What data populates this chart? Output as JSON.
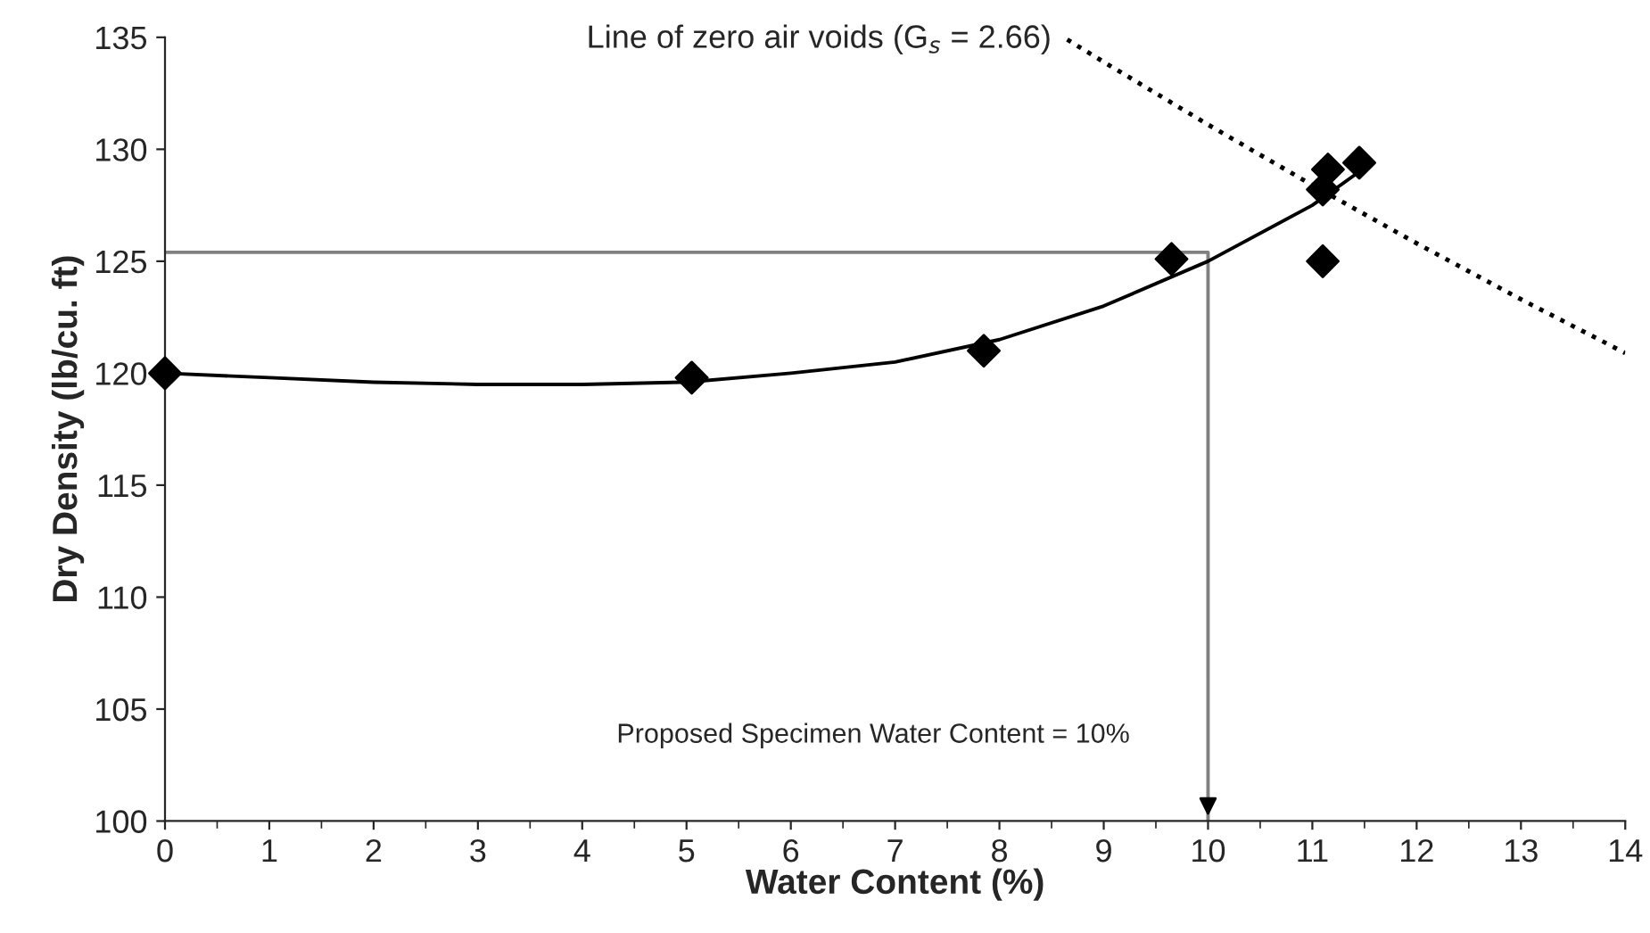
{
  "chart_data": {
    "type": "scatter",
    "xlabel": "Water Content (%)",
    "ylabel": "Dry Density (lb/cu. ft)",
    "xlim": [
      0,
      14
    ],
    "xticks": [
      0,
      1,
      2,
      3,
      4,
      5,
      6,
      7,
      8,
      9,
      10,
      11,
      12,
      13,
      14
    ],
    "ylim": [
      100,
      135
    ],
    "yticks": [
      100,
      105,
      110,
      115,
      120,
      125,
      130,
      135
    ],
    "grid": false,
    "legend": false,
    "series": [
      {
        "type": "line",
        "color": "#808080",
        "marker": "none",
        "line_style": "solid",
        "x": [
          0,
          10,
          10
        ],
        "values": [
          125.4,
          125.4,
          100
        ]
      },
      {
        "type": "line",
        "color": "#000000",
        "marker": "none",
        "line_style": "solid",
        "x": [
          0,
          1,
          2,
          3,
          4,
          5,
          6,
          7,
          8,
          9,
          10,
          11,
          11.45
        ],
        "values": [
          120,
          119.8,
          119.6,
          119.5,
          119.5,
          119.6,
          120,
          120.5,
          121.5,
          123,
          125,
          127.5,
          129
        ]
      },
      {
        "type": "line",
        "name": "Line of zero air voids (G$_{s}$ = 2.66)",
        "color": "#000000",
        "marker": "none",
        "line_style": "dotted",
        "x": [
          8.65,
          9,
          10,
          11,
          12,
          13,
          14
        ],
        "values": [
          134.9,
          133.9,
          131.1,
          128.4,
          125.8,
          123.3,
          120.9
        ]
      },
      {
        "color": "#000000",
        "marker": "diamond",
        "x": [
          0,
          5.05,
          7.85,
          9.65,
          11.1,
          11.15,
          11.1,
          11.45
        ],
        "values": [
          120,
          119.8,
          121,
          125.1,
          128.2,
          129.1,
          125,
          129.4
        ]
      }
    ],
    "annotations": [
      "Proposed Specimen Water Content = 10%"
    ]
  }
}
